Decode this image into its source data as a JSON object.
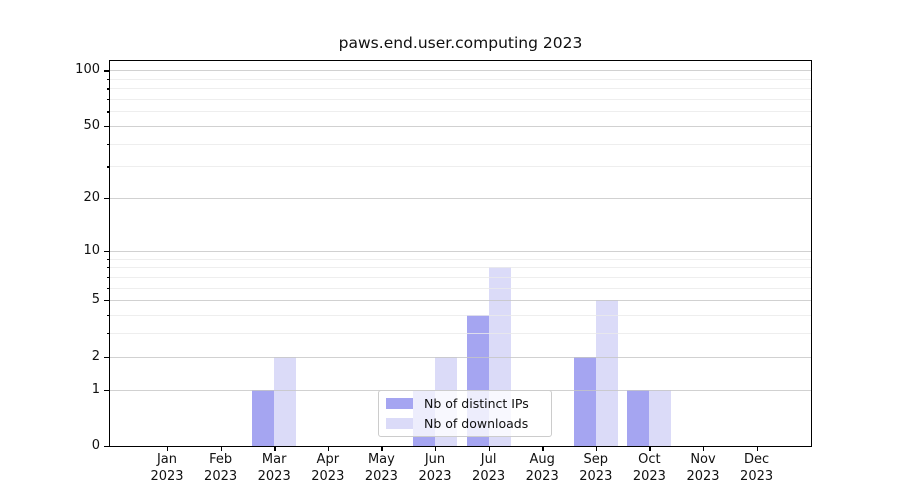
{
  "chart_data": {
    "type": "bar",
    "title": "paws.end.user.computing 2023",
    "xlabel": "",
    "ylabel": "",
    "categories": [
      "Jan 2023",
      "Feb 2023",
      "Mar 2023",
      "Apr 2023",
      "May 2023",
      "Jun 2023",
      "Jul 2023",
      "Aug 2023",
      "Sep 2023",
      "Oct 2023",
      "Nov 2023",
      "Dec 2023"
    ],
    "series": [
      {
        "name": "Nb of distinct IPs",
        "color": "#a5a5f1",
        "values": [
          0,
          0,
          1,
          0,
          0,
          1,
          4,
          0,
          2,
          1,
          0,
          0
        ]
      },
      {
        "name": "Nb of downloads",
        "color": "#dbdbf8",
        "values": [
          0,
          0,
          2,
          0,
          0,
          2,
          8,
          0,
          5,
          1,
          0,
          0
        ]
      }
    ],
    "yscale": "log1p",
    "ylim": [
      0,
      113
    ],
    "yticks_major": [
      0,
      1,
      2,
      5,
      10,
      20,
      50,
      100
    ],
    "yticks_minor": [
      3,
      4,
      6,
      7,
      8,
      9,
      30,
      40,
      60,
      70,
      80,
      90
    ],
    "grid": "both",
    "grid_color_major": "#c6c6c6",
    "grid_color_minor": "#ebebeb",
    "legend_position": "lower center",
    "background": "#ffffff"
  }
}
